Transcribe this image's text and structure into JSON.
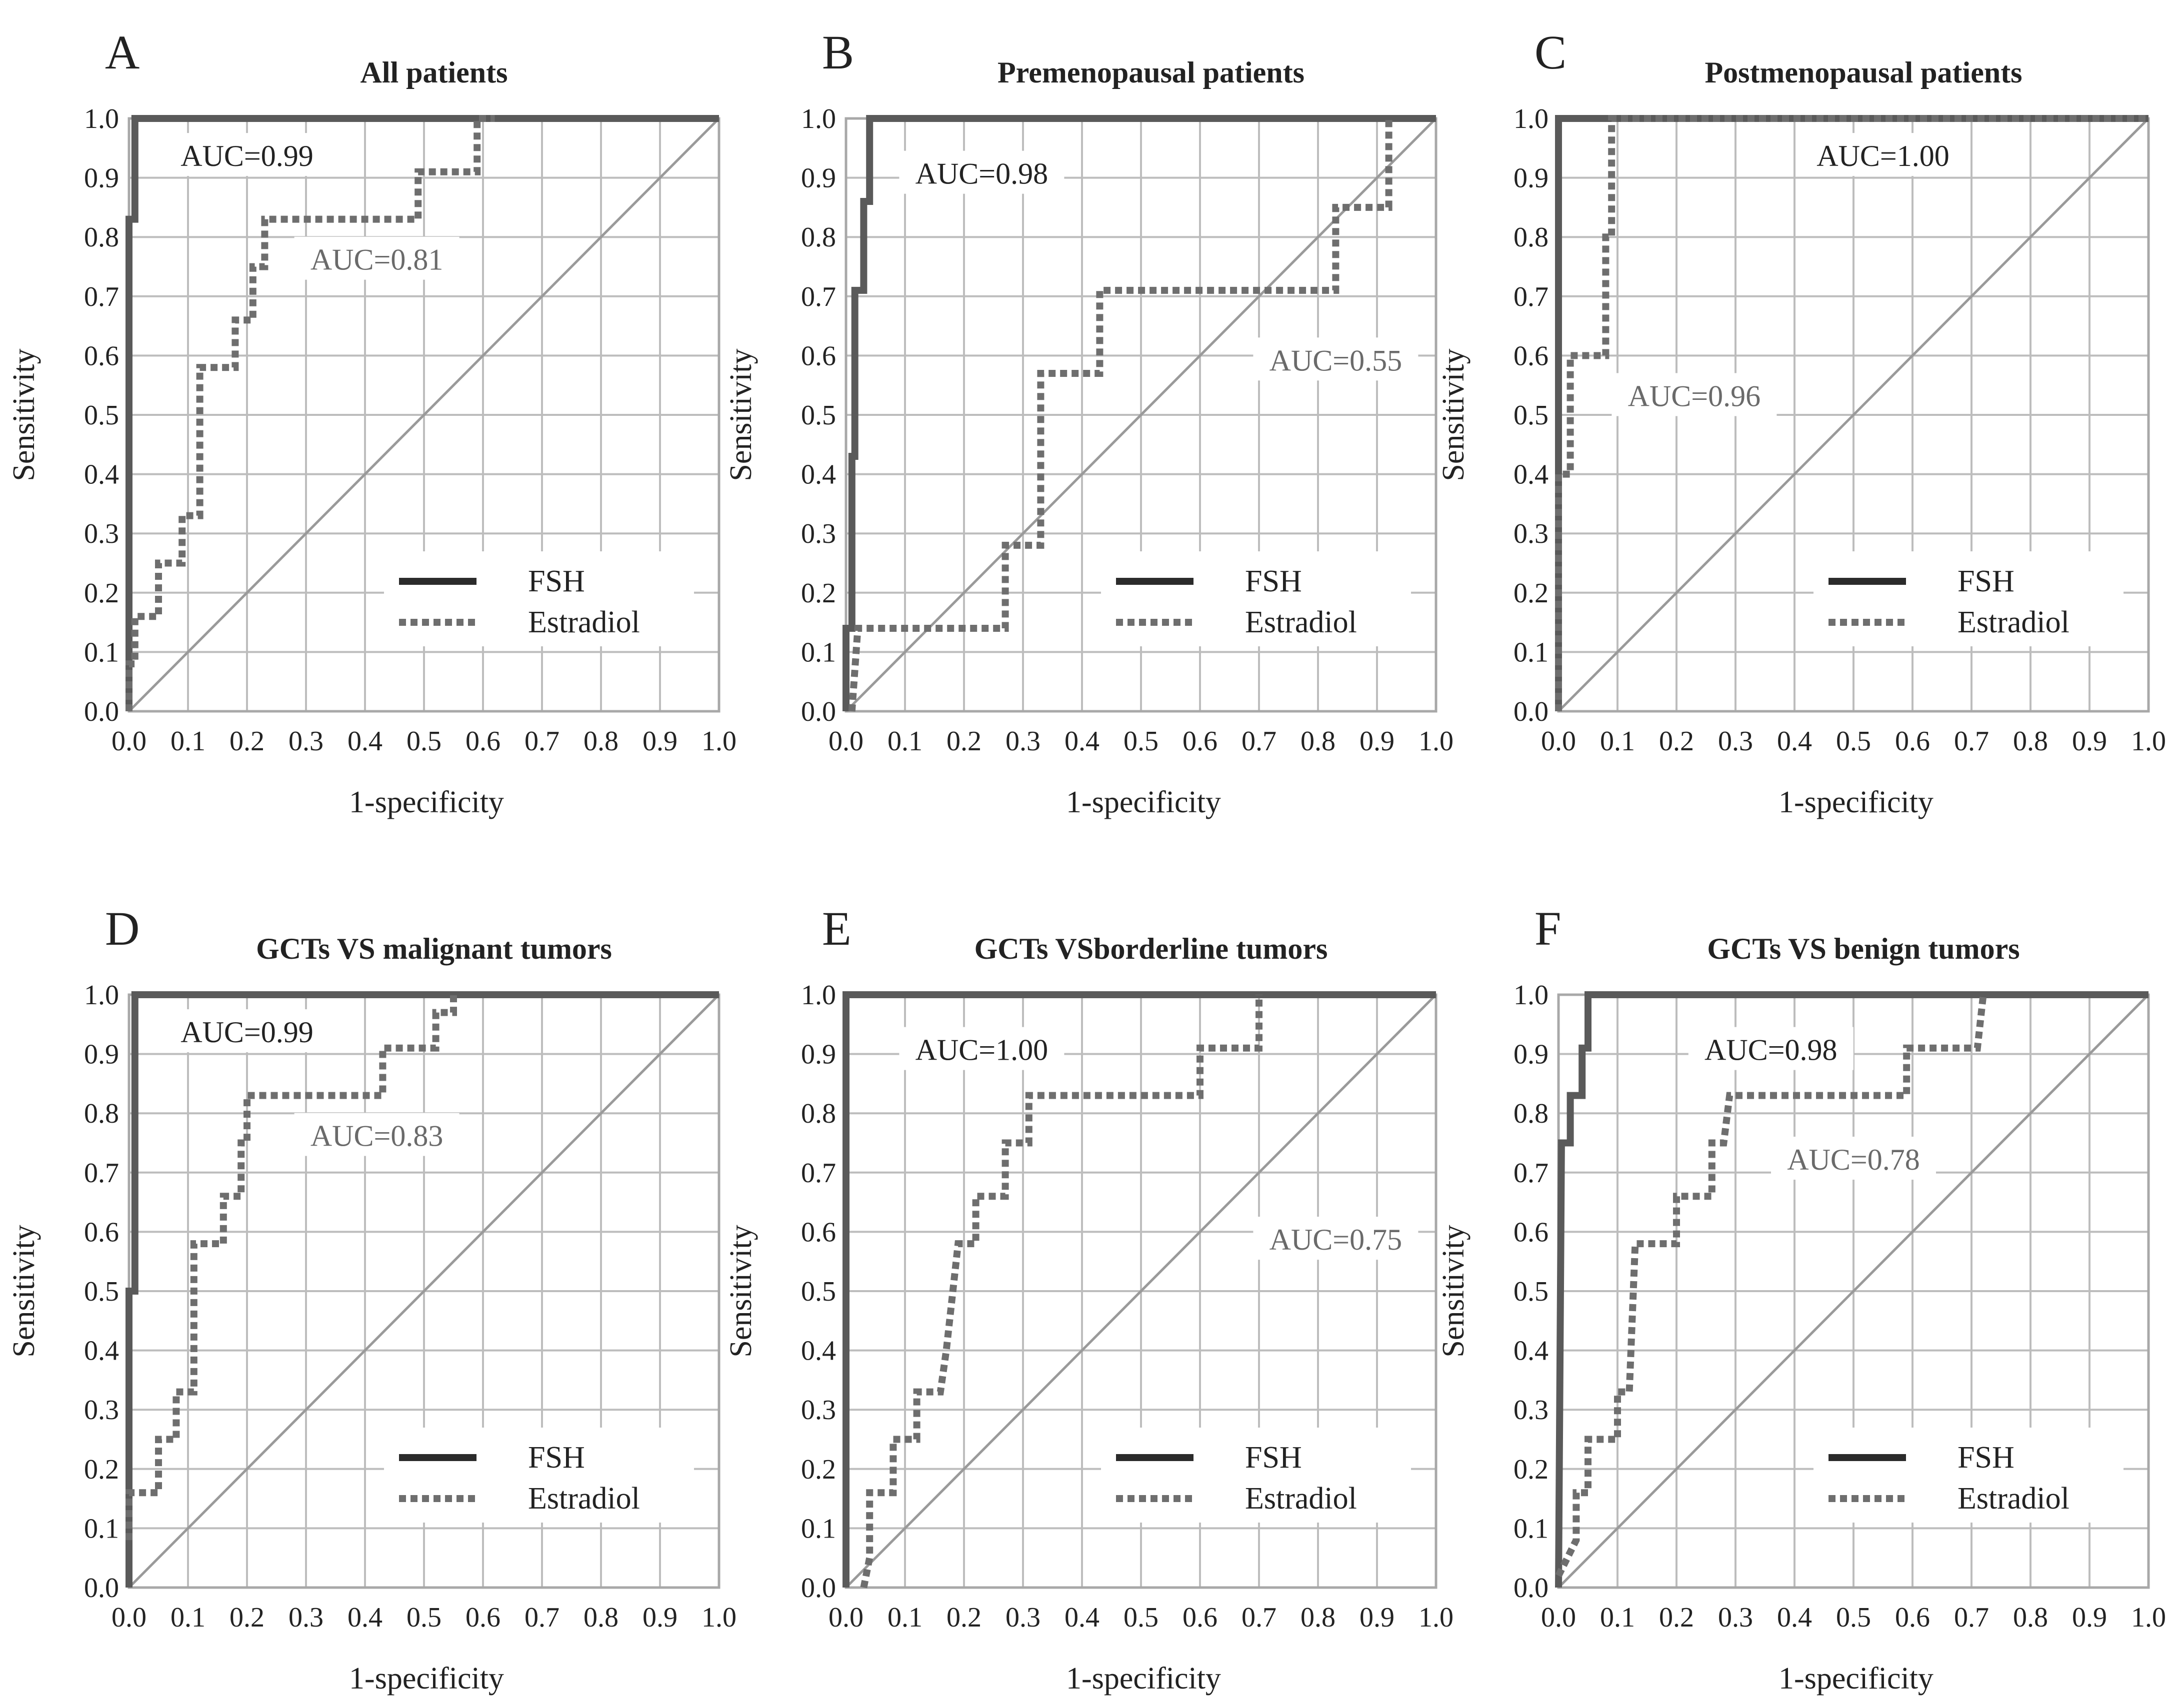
{
  "colors": {
    "fsh": "#5a5a5a",
    "estradiol": "#6e6e6e",
    "grid": "#bdbdbd",
    "frame": "#a8a8a8",
    "diagonal": "#9a9a9a",
    "text": "#222222",
    "auc_estradiol_text": "#6a6a6a",
    "legend_line": "#2b2b2b"
  },
  "chart_data": [
    {
      "panel": "A",
      "type": "line",
      "title": "All patients",
      "xlabel": "1-specificity",
      "ylabel": "Sensitivity",
      "xlim": [
        0,
        1
      ],
      "ylim": [
        0,
        1
      ],
      "x_ticks": [
        "0.0",
        "0.1",
        "0.2",
        "0.3",
        "0.4",
        "0.5",
        "0.6",
        "0.7",
        "0.8",
        "0.9",
        "1.0"
      ],
      "y_ticks": [
        "0.0",
        "0.1",
        "0.2",
        "0.3",
        "0.4",
        "0.5",
        "0.6",
        "0.7",
        "0.8",
        "0.9",
        "1.0"
      ],
      "grid": true,
      "legend": {
        "position": "bottom-right",
        "entries": [
          "FSH",
          "Estradiol"
        ]
      },
      "annotations": [
        {
          "text": "AUC=0.99",
          "series": "FSH",
          "x": 0.2,
          "y": 0.935
        },
        {
          "text": "AUC=0.81",
          "series": "Estradiol",
          "x": 0.42,
          "y": 0.76
        }
      ],
      "series": [
        {
          "name": "FSH",
          "style": "solid",
          "points": [
            [
              0,
              0
            ],
            [
              0,
              0.75
            ],
            [
              0,
              0.83
            ],
            [
              0.01,
              0.83
            ],
            [
              0.01,
              0.92
            ],
            [
              0.01,
              1.0
            ],
            [
              1.0,
              1.0
            ]
          ]
        },
        {
          "name": "Estradiol",
          "style": "dashed",
          "points": [
            [
              0,
              0
            ],
            [
              0,
              0.08
            ],
            [
              0.01,
              0.08
            ],
            [
              0.01,
              0.16
            ],
            [
              0.05,
              0.16
            ],
            [
              0.05,
              0.25
            ],
            [
              0.09,
              0.25
            ],
            [
              0.09,
              0.33
            ],
            [
              0.12,
              0.33
            ],
            [
              0.12,
              0.58
            ],
            [
              0.18,
              0.58
            ],
            [
              0.18,
              0.66
            ],
            [
              0.21,
              0.66
            ],
            [
              0.21,
              0.75
            ],
            [
              0.23,
              0.75
            ],
            [
              0.23,
              0.83
            ],
            [
              0.49,
              0.83
            ],
            [
              0.49,
              0.91
            ],
            [
              0.59,
              0.91
            ],
            [
              0.59,
              1.0
            ],
            [
              0.62,
              1.0
            ]
          ]
        }
      ]
    },
    {
      "panel": "B",
      "type": "line",
      "title": "Premenopausal patients",
      "xlabel": "1-specificity",
      "ylabel": "Sensitivity",
      "xlim": [
        0,
        1
      ],
      "ylim": [
        0,
        1
      ],
      "x_ticks": [
        "0.0",
        "0.1",
        "0.2",
        "0.3",
        "0.4",
        "0.5",
        "0.6",
        "0.7",
        "0.8",
        "0.9",
        "1.0"
      ],
      "y_ticks": [
        "0.0",
        "0.1",
        "0.2",
        "0.3",
        "0.4",
        "0.5",
        "0.6",
        "0.7",
        "0.8",
        "0.9",
        "1.0"
      ],
      "grid": true,
      "legend": {
        "position": "bottom-right",
        "entries": [
          "FSH",
          "Estradiol"
        ]
      },
      "annotations": [
        {
          "text": "AUC=0.98",
          "series": "FSH",
          "x": 0.23,
          "y": 0.905
        },
        {
          "text": "AUC=0.55",
          "series": "Estradiol",
          "x": 0.83,
          "y": 0.59
        }
      ],
      "series": [
        {
          "name": "FSH",
          "style": "solid",
          "points": [
            [
              0,
              0
            ],
            [
              0,
              0.14
            ],
            [
              0.01,
              0.14
            ],
            [
              0.01,
              0.43
            ],
            [
              0.015,
              0.43
            ],
            [
              0.015,
              0.71
            ],
            [
              0.03,
              0.71
            ],
            [
              0.03,
              0.86
            ],
            [
              0.04,
              0.86
            ],
            [
              0.04,
              1.0
            ],
            [
              1.0,
              1.0
            ]
          ]
        },
        {
          "name": "Estradiol",
          "style": "dashed",
          "points": [
            [
              0.01,
              0
            ],
            [
              0.02,
              0.14
            ],
            [
              0.27,
              0.14
            ],
            [
              0.27,
              0.28
            ],
            [
              0.33,
              0.28
            ],
            [
              0.33,
              0.57
            ],
            [
              0.43,
              0.57
            ],
            [
              0.43,
              0.71
            ],
            [
              0.83,
              0.71
            ],
            [
              0.83,
              0.85
            ],
            [
              0.92,
              0.85
            ],
            [
              0.92,
              1.0
            ]
          ]
        }
      ]
    },
    {
      "panel": "C",
      "type": "line",
      "title": "Postmenopausal patients",
      "xlabel": "1-specificity",
      "ylabel": "Sensitivity",
      "xlim": [
        0,
        1
      ],
      "ylim": [
        0,
        1
      ],
      "x_ticks": [
        "0.0",
        "0.1",
        "0.2",
        "0.3",
        "0.4",
        "0.5",
        "0.6",
        "0.7",
        "0.8",
        "0.9",
        "1.0"
      ],
      "y_ticks": [
        "0.0",
        "0.1",
        "0.2",
        "0.3",
        "0.4",
        "0.5",
        "0.6",
        "0.7",
        "0.8",
        "0.9",
        "1.0"
      ],
      "grid": true,
      "legend": {
        "position": "bottom-right",
        "entries": [
          "FSH",
          "Estradiol"
        ]
      },
      "annotations": [
        {
          "text": "AUC=1.00",
          "series": "FSH",
          "x": 0.55,
          "y": 0.935
        },
        {
          "text": "AUC=0.96",
          "series": "Estradiol",
          "x": 0.23,
          "y": 0.53
        }
      ],
      "series": [
        {
          "name": "FSH",
          "style": "solid",
          "points": [
            [
              0,
              0
            ],
            [
              0,
              1.0
            ],
            [
              1.0,
              1.0
            ]
          ]
        },
        {
          "name": "Estradiol",
          "style": "dashed",
          "points": [
            [
              0,
              0
            ],
            [
              0,
              0.4
            ],
            [
              0.02,
              0.4
            ],
            [
              0.02,
              0.6
            ],
            [
              0.08,
              0.6
            ],
            [
              0.08,
              0.8
            ],
            [
              0.09,
              0.8
            ],
            [
              0.09,
              1.0
            ],
            [
              1.0,
              1.0
            ]
          ]
        }
      ]
    },
    {
      "panel": "D",
      "type": "line",
      "title": "GCTs VS malignant tumors",
      "xlabel": "1-specificity",
      "ylabel": "Sensitivity",
      "xlim": [
        0,
        1
      ],
      "ylim": [
        0,
        1
      ],
      "x_ticks": [
        "0.0",
        "0.1",
        "0.2",
        "0.3",
        "0.4",
        "0.5",
        "0.6",
        "0.7",
        "0.8",
        "0.9",
        "1.0"
      ],
      "y_ticks": [
        "0.0",
        "0.1",
        "0.2",
        "0.3",
        "0.4",
        "0.5",
        "0.6",
        "0.7",
        "0.8",
        "0.9",
        "1.0"
      ],
      "grid": true,
      "legend": {
        "position": "bottom-right",
        "entries": [
          "FSH",
          "Estradiol"
        ]
      },
      "annotations": [
        {
          "text": "AUC=0.99",
          "series": "FSH",
          "x": 0.2,
          "y": 0.935
        },
        {
          "text": "AUC=0.83",
          "series": "Estradiol",
          "x": 0.42,
          "y": 0.76
        }
      ],
      "series": [
        {
          "name": "FSH",
          "style": "solid",
          "points": [
            [
              0,
              0
            ],
            [
              0,
              0.5
            ],
            [
              0.01,
              0.5
            ],
            [
              0.01,
              1.0
            ],
            [
              1.0,
              1.0
            ]
          ]
        },
        {
          "name": "Estradiol",
          "style": "dashed",
          "points": [
            [
              0,
              0.08
            ],
            [
              0,
              0.16
            ],
            [
              0.05,
              0.16
            ],
            [
              0.05,
              0.25
            ],
            [
              0.08,
              0.25
            ],
            [
              0.08,
              0.33
            ],
            [
              0.11,
              0.33
            ],
            [
              0.11,
              0.58
            ],
            [
              0.16,
              0.58
            ],
            [
              0.16,
              0.66
            ],
            [
              0.19,
              0.66
            ],
            [
              0.19,
              0.75
            ],
            [
              0.2,
              0.75
            ],
            [
              0.2,
              0.83
            ],
            [
              0.43,
              0.83
            ],
            [
              0.43,
              0.91
            ],
            [
              0.52,
              0.91
            ],
            [
              0.52,
              0.97
            ],
            [
              0.55,
              0.97
            ],
            [
              0.55,
              1.0
            ]
          ]
        }
      ]
    },
    {
      "panel": "E",
      "type": "line",
      "title": "GCTs VSborderline tumors",
      "xlabel": "1-specificity",
      "ylabel": "Sensitivity",
      "xlim": [
        0,
        1
      ],
      "ylim": [
        0,
        1
      ],
      "x_ticks": [
        "0.0",
        "0.1",
        "0.2",
        "0.3",
        "0.4",
        "0.5",
        "0.6",
        "0.7",
        "0.8",
        "0.9",
        "1.0"
      ],
      "y_ticks": [
        "0.0",
        "0.1",
        "0.2",
        "0.3",
        "0.4",
        "0.5",
        "0.6",
        "0.7",
        "0.8",
        "0.9",
        "1.0"
      ],
      "grid": true,
      "legend": {
        "position": "bottom-right",
        "entries": [
          "FSH",
          "Estradiol"
        ]
      },
      "annotations": [
        {
          "text": "AUC=1.00",
          "series": "FSH",
          "x": 0.23,
          "y": 0.905
        },
        {
          "text": "AUC=0.75",
          "series": "Estradiol",
          "x": 0.83,
          "y": 0.585
        }
      ],
      "series": [
        {
          "name": "FSH",
          "style": "solid",
          "points": [
            [
              0,
              0
            ],
            [
              0,
              1.0
            ],
            [
              1.0,
              1.0
            ]
          ]
        },
        {
          "name": "Estradiol",
          "style": "dashed",
          "points": [
            [
              0.03,
              0
            ],
            [
              0.04,
              0.05
            ],
            [
              0.04,
              0.16
            ],
            [
              0.08,
              0.16
            ],
            [
              0.08,
              0.25
            ],
            [
              0.12,
              0.25
            ],
            [
              0.12,
              0.33
            ],
            [
              0.16,
              0.33
            ],
            [
              0.17,
              0.4
            ],
            [
              0.19,
              0.58
            ],
            [
              0.22,
              0.58
            ],
            [
              0.22,
              0.66
            ],
            [
              0.27,
              0.66
            ],
            [
              0.27,
              0.75
            ],
            [
              0.31,
              0.75
            ],
            [
              0.31,
              0.83
            ],
            [
              0.6,
              0.83
            ],
            [
              0.6,
              0.91
            ],
            [
              0.7,
              0.91
            ],
            [
              0.7,
              1.0
            ]
          ]
        }
      ]
    },
    {
      "panel": "F",
      "type": "line",
      "title": "GCTs VS benign tumors",
      "xlabel": "1-specificity",
      "ylabel": "Sensitivity",
      "xlim": [
        0,
        1
      ],
      "ylim": [
        0,
        1
      ],
      "x_ticks": [
        "0.0",
        "0.1",
        "0.2",
        "0.3",
        "0.4",
        "0.5",
        "0.6",
        "0.7",
        "0.8",
        "0.9",
        "1.0"
      ],
      "y_ticks": [
        "0.0",
        "0.1",
        "0.2",
        "0.3",
        "0.4",
        "0.5",
        "0.6",
        "0.7",
        "0.8",
        "0.9",
        "1.0"
      ],
      "grid": true,
      "legend": {
        "position": "bottom-right",
        "entries": [
          "FSH",
          "Estradiol"
        ]
      },
      "annotations": [
        {
          "text": "AUC=0.98",
          "series": "FSH",
          "x": 0.36,
          "y": 0.905
        },
        {
          "text": "AUC=0.78",
          "series": "Estradiol",
          "x": 0.5,
          "y": 0.72
        }
      ],
      "series": [
        {
          "name": "FSH",
          "style": "solid",
          "points": [
            [
              0,
              0
            ],
            [
              0.005,
              0.75
            ],
            [
              0.02,
              0.75
            ],
            [
              0.02,
              0.83
            ],
            [
              0.04,
              0.83
            ],
            [
              0.04,
              0.91
            ],
            [
              0.05,
              0.91
            ],
            [
              0.05,
              1.0
            ],
            [
              1.0,
              1.0
            ]
          ]
        },
        {
          "name": "Estradiol",
          "style": "dashed",
          "points": [
            [
              0,
              0.02
            ],
            [
              0.03,
              0.08
            ],
            [
              0.03,
              0.16
            ],
            [
              0.05,
              0.16
            ],
            [
              0.05,
              0.25
            ],
            [
              0.1,
              0.25
            ],
            [
              0.1,
              0.33
            ],
            [
              0.12,
              0.33
            ],
            [
              0.13,
              0.58
            ],
            [
              0.2,
              0.58
            ],
            [
              0.2,
              0.66
            ],
            [
              0.26,
              0.66
            ],
            [
              0.26,
              0.75
            ],
            [
              0.28,
              0.75
            ],
            [
              0.29,
              0.83
            ],
            [
              0.59,
              0.83
            ],
            [
              0.59,
              0.91
            ],
            [
              0.71,
              0.91
            ],
            [
              0.72,
              1.0
            ]
          ]
        }
      ]
    }
  ]
}
